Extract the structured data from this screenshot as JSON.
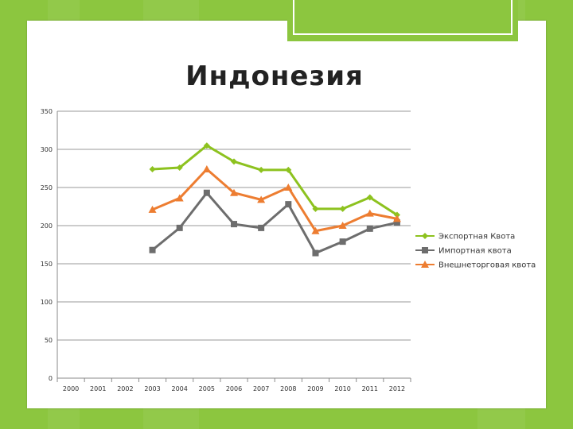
{
  "chart_data": {
    "type": "line",
    "title": "Индонезия",
    "xlabel": "",
    "ylabel": "",
    "ylim": [
      0,
      350
    ],
    "yticks": [
      0,
      50,
      100,
      150,
      200,
      250,
      300,
      350
    ],
    "grid": true,
    "legend_position": "right",
    "categories": [
      "2000",
      "2001",
      "2002",
      "2003",
      "2004",
      "2005",
      "2006",
      "2007",
      "2008",
      "2009",
      "2010",
      "2011",
      "2012"
    ],
    "series": [
      {
        "name": "Экспортная  Квота",
        "color": "#8dc21f",
        "marker": "diamond",
        "values": [
          null,
          null,
          null,
          274,
          276,
          305,
          284,
          273,
          273,
          222,
          222,
          237,
          214
        ]
      },
      {
        "name": "Импортная квота",
        "color": "#6d6d6d",
        "marker": "square",
        "values": [
          null,
          null,
          null,
          168,
          197,
          243,
          202,
          197,
          228,
          164,
          179,
          196,
          204
        ]
      },
      {
        "name": "Внешнеторговая квота",
        "color": "#ed7d31",
        "marker": "triangle",
        "values": [
          null,
          null,
          null,
          221,
          236,
          274,
          243,
          234,
          250,
          193,
          200,
          216,
          209
        ]
      }
    ]
  }
}
